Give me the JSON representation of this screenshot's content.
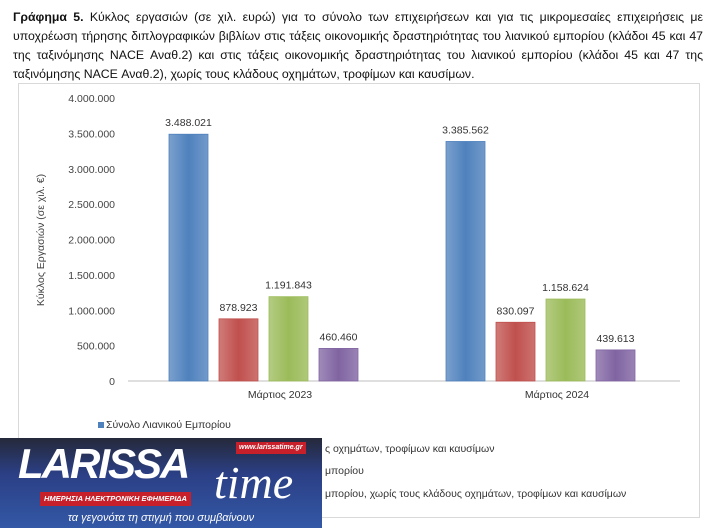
{
  "caption": {
    "bold": "Γράφημα 5.",
    "text": " Κύκλος εργασιών (σε χιλ. ευρώ) για το σύνολο των επιχειρήσεων και για τις μικρομεσαίες επιχειρήσεις με υποχρέωση τήρησης διπλογραφικών βιβλίων στις τάξεις οικονομικής δραστηριότητας του λιανικού εμπορίου (κλάδοι 45 και 47 της ταξινόμησης NACE Αναθ.2) και στις τάξεις οικονομικής δραστηριότητας του λιανικού εμπορίου (κλάδοι 45 και 47 της ταξινόμησης NACE Αναθ.2), χωρίς τους κλάδους οχημάτων, τροφίμων και καυσίμων."
  },
  "chart_data": {
    "type": "bar",
    "categories": [
      "Μάρτιος 2023",
      "Μάρτιος 2024"
    ],
    "ylabel": "Κύκλος Εργασιών (σε χιλ. €)",
    "ylim": [
      0,
      4000000
    ],
    "yticks": [
      "0",
      "500.000",
      "1.000.000",
      "1.500.000",
      "2.000.000",
      "2.500.000",
      "3.000.000",
      "3.500.000",
      "4.000.000"
    ],
    "series": [
      {
        "name": "Σύνολο Λιανικού Εμπορίου",
        "color": "#4F81BD",
        "values": [
          3488021,
          3385562
        ],
        "labels": [
          "3.488.021",
          "3.385.562"
        ]
      },
      {
        "name": "",
        "color": "#C0504D",
        "values": [
          878923,
          830097
        ],
        "labels": [
          "878.923",
          "830.097"
        ]
      },
      {
        "name": "",
        "color": "#9BBB59",
        "values": [
          1191843,
          1158624
        ],
        "labels": [
          "1.191.843",
          "1.158.624"
        ]
      },
      {
        "name": "",
        "color": "#8064A2",
        "values": [
          460460,
          439613
        ],
        "labels": [
          "460.460",
          "439.613"
        ]
      }
    ],
    "legend_visible_fragments": [
      "ς οχημάτων, τροφίμων και καυσίμων",
      "μπορίου",
      "μπορίου, χωρίς τους κλάδους οχημάτων, τροφίμων και καυσίμων"
    ],
    "legend_position": "bottom-left"
  },
  "logo": {
    "name": "LARISSA",
    "time": "time",
    "url": "www.larissatime.gr",
    "subtitle": "ΗΜΕΡΗΣΙΑ ΗΛΕΚΤΡΟΝΙΚΗ ΕΦΗΜΕΡΙΔΑ",
    "slogan": "τα γεγονότα τη στιγμή που συμβαίνουν"
  }
}
